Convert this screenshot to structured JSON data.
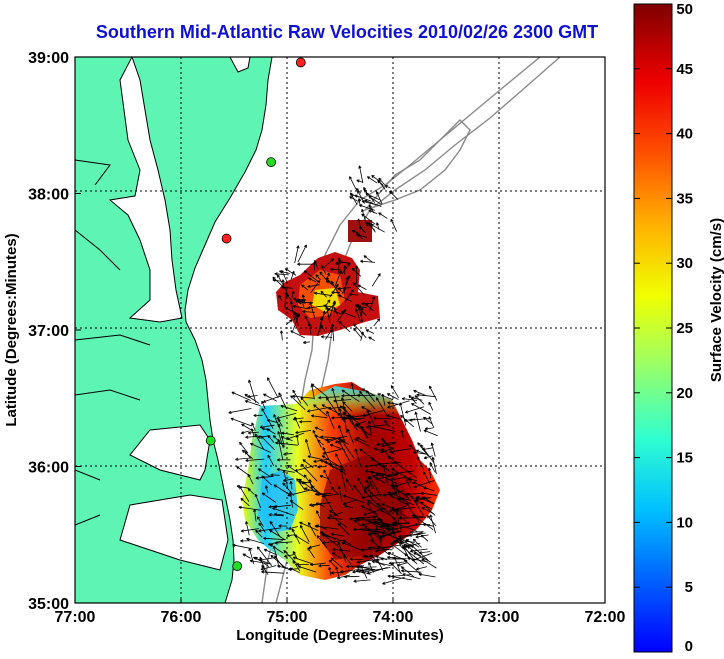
{
  "title": "Southern Mid-Atlantic Raw Velocities 2010/02/26 2300 GMT",
  "map": {
    "xlabel": "Longitude (Degrees:Minutes)",
    "ylabel": "Latitude (Degrees:Minutes)",
    "x_ticks": [
      "77:00",
      "76:00",
      "75:00",
      "74:00",
      "73:00",
      "72:00"
    ],
    "y_ticks": [
      "39:00",
      "38:00",
      "37:00",
      "36:00",
      "35:00"
    ],
    "x_range": [
      -77,
      -72
    ],
    "y_range": [
      35,
      39
    ],
    "grid": true,
    "colors": {
      "land": "#5ef5b4",
      "coastline": "#000000",
      "bathymetry": "#8a8a8a",
      "vectors": "#000000"
    }
  },
  "colorbar": {
    "label": "Surface Velocity (cm/s)",
    "ticks": [
      "0",
      "5",
      "10",
      "15",
      "20",
      "25",
      "30",
      "35",
      "40",
      "45",
      "50"
    ],
    "range": [
      0,
      50
    ],
    "colormap": "jet"
  },
  "stations": [
    {
      "lon": -74.87,
      "lat": 38.96,
      "status": "offline",
      "color": "#ff2020"
    },
    {
      "lon": -75.15,
      "lat": 38.23,
      "status": "online",
      "color": "#22dd22"
    },
    {
      "lon": -75.57,
      "lat": 37.67,
      "status": "offline",
      "color": "#ff2020"
    },
    {
      "lon": -75.72,
      "lat": 36.19,
      "status": "online",
      "color": "#22dd22"
    },
    {
      "lon": -75.47,
      "lat": 35.27,
      "status": "online",
      "color": "#22dd22"
    }
  ]
}
